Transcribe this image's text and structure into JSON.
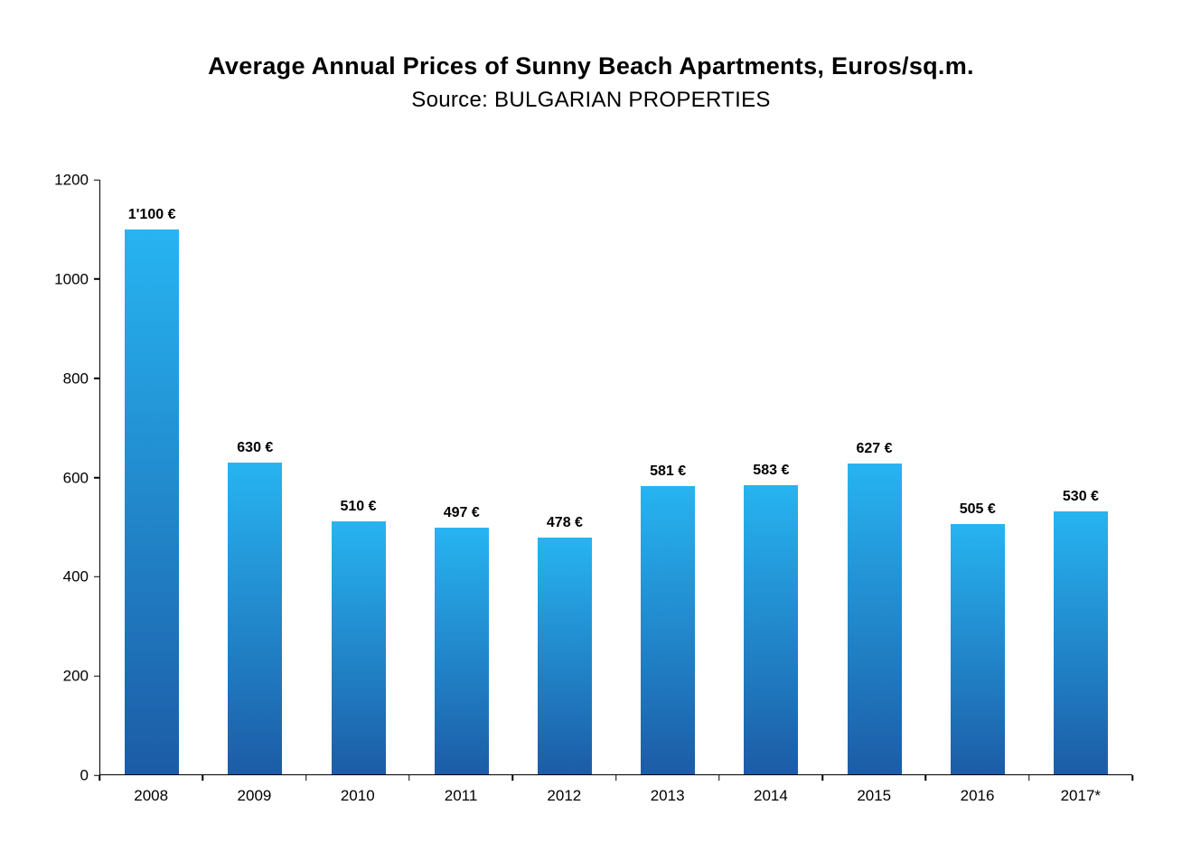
{
  "chart_data": {
    "type": "bar",
    "title": "Average Annual Prices of Sunny Beach Apartments, Euros/sq.m.",
    "subtitle": "Source: BULGARIAN PROPERTIES",
    "categories": [
      "2008",
      "2009",
      "2010",
      "2011",
      "2012",
      "2013",
      "2014",
      "2015",
      "2016",
      "2017*"
    ],
    "values": [
      1100,
      630,
      510,
      497,
      478,
      581,
      583,
      627,
      505,
      530
    ],
    "labels": [
      "1'100 €",
      "630 €",
      "510 €",
      "497 €",
      "478 €",
      "581 €",
      "583 €",
      "627 €",
      "505 €",
      "530 €"
    ],
    "xlabel": "",
    "ylabel": "",
    "ylim": [
      0,
      1200
    ],
    "yticks": [
      0,
      200,
      400,
      600,
      800,
      1000,
      1200
    ],
    "grid": false,
    "legend": false,
    "bar_color_top": "#27b4f1",
    "bar_color_bottom": "#1c5ca6",
    "axis_color": "#000000",
    "background_color": "#ffffff"
  }
}
